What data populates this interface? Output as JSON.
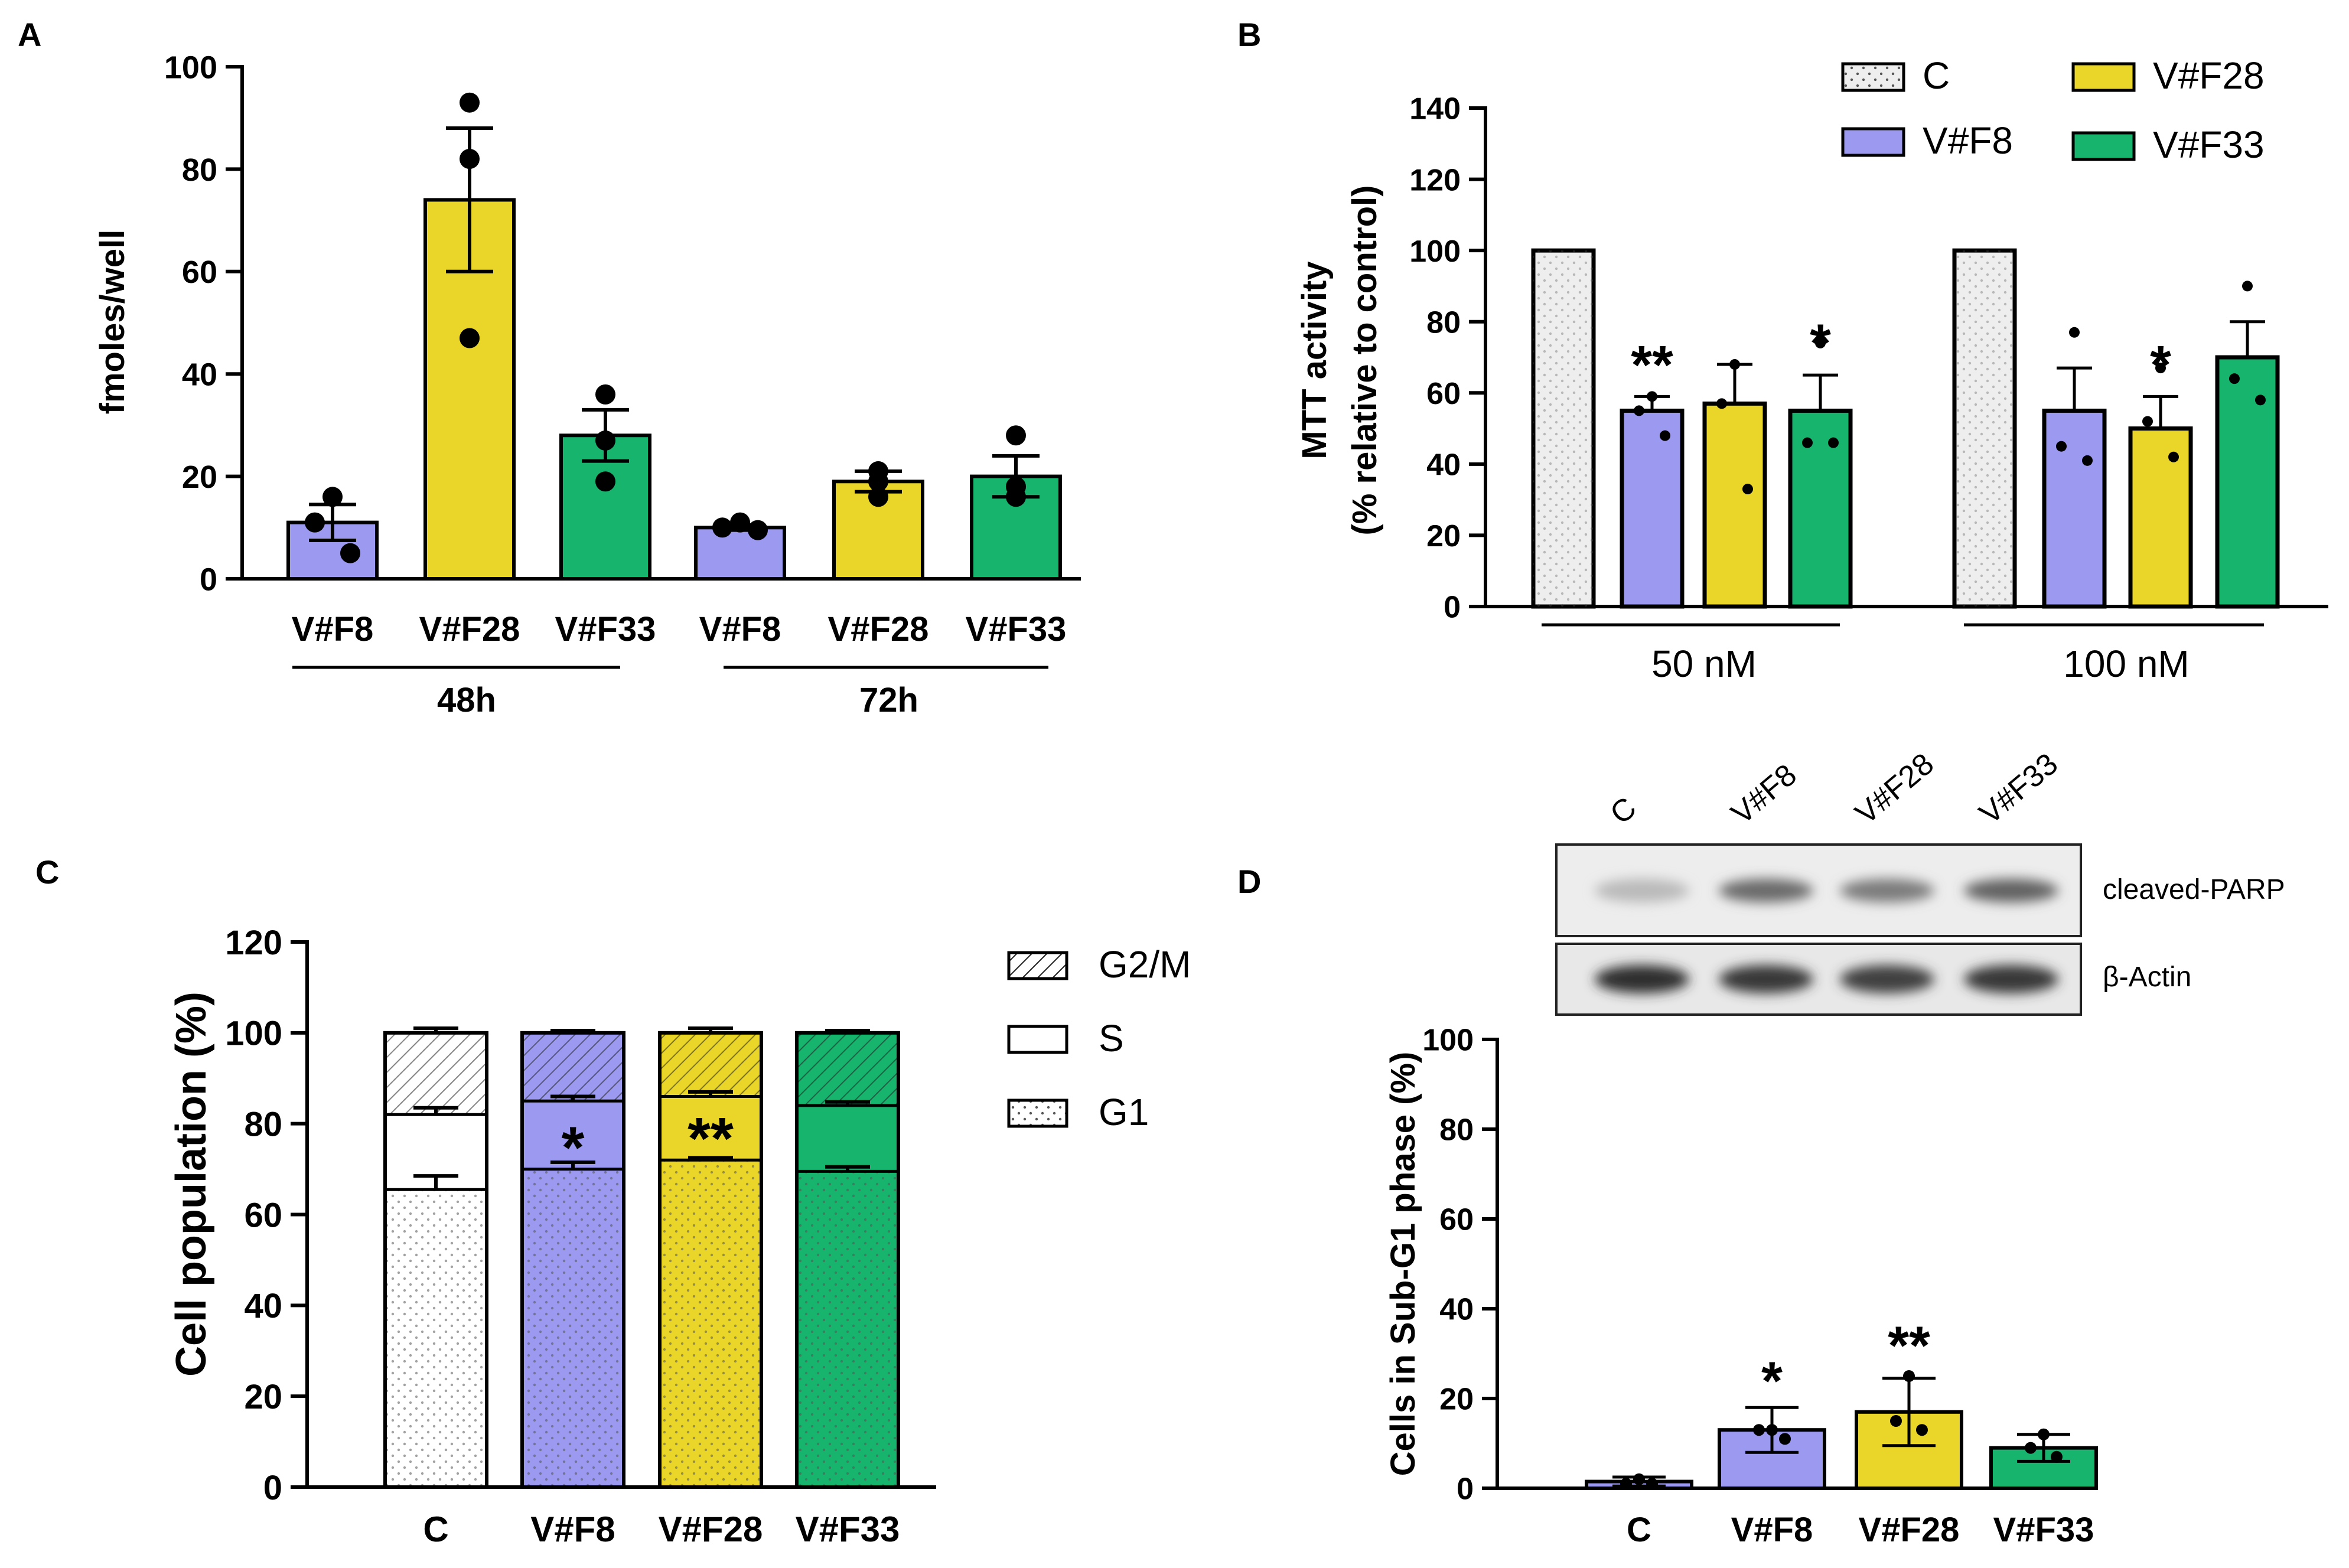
{
  "colors": {
    "control": "#eeeeee",
    "F8": "#9b99f0",
    "F28": "#ead629",
    "F33": "#17b46e",
    "axis": "#000000"
  },
  "chart_data": [
    {
      "panel": "A",
      "type": "bar",
      "ylabel": "fmoles/well",
      "ylim": [
        0,
        100
      ],
      "yticks": [
        "0",
        "20",
        "40",
        "60",
        "80",
        "100"
      ],
      "groups": [
        {
          "label": "48h",
          "bars": [
            {
              "label": "V#F8",
              "color": "F8",
              "mean": 11,
              "sem": 3.5,
              "points": [
                16,
                11,
                5
              ]
            },
            {
              "label": "V#F28",
              "color": "F28",
              "mean": 74,
              "sem": 14,
              "points": [
                93,
                82,
                47
              ]
            },
            {
              "label": "V#F33",
              "color": "F33",
              "mean": 28,
              "sem": 5,
              "points": [
                36,
                27,
                19
              ]
            }
          ]
        },
        {
          "label": "72h",
          "bars": [
            {
              "label": "V#F8",
              "color": "F8",
              "mean": 10,
              "sem": 0.5,
              "points": [
                11,
                10,
                9.5
              ]
            },
            {
              "label": "V#F28",
              "color": "F28",
              "mean": 19,
              "sem": 2,
              "points": [
                21,
                19,
                16
              ]
            },
            {
              "label": "V#F33",
              "color": "F33",
              "mean": 20,
              "sem": 4,
              "points": [
                28,
                18,
                16
              ]
            }
          ]
        }
      ]
    },
    {
      "panel": "B",
      "type": "bar",
      "ylabel_line1": "MTT activity",
      "ylabel_line2": "(% relative to control)",
      "ylim": [
        0,
        140
      ],
      "yticks": [
        "0",
        "20",
        "40",
        "60",
        "80",
        "100",
        "120",
        "140"
      ],
      "legend": [
        {
          "label": "C",
          "color": "control",
          "pattern": "dots"
        },
        {
          "label": "V#F28",
          "color": "F28"
        },
        {
          "label": "V#F8",
          "color": "F8"
        },
        {
          "label": "V#F33",
          "color": "F33"
        }
      ],
      "groups": [
        {
          "label": "50 nM",
          "bars": [
            {
              "label": "C",
              "color": "control",
              "pattern": "dots",
              "mean": 100,
              "sem": 0,
              "points": []
            },
            {
              "label": "V#F8",
              "color": "F8",
              "mean": 55,
              "sem": 4,
              "points": [
                59,
                55,
                48
              ],
              "sig": "**"
            },
            {
              "label": "V#F28",
              "color": "F28",
              "mean": 57,
              "sem": 11,
              "points": [
                68,
                57,
                33
              ]
            },
            {
              "label": "V#F33",
              "color": "F33",
              "mean": 55,
              "sem": 10,
              "points": [
                74,
                46,
                46
              ],
              "sig": "*"
            }
          ]
        },
        {
          "label": "100 nM",
          "bars": [
            {
              "label": "C",
              "color": "control",
              "pattern": "dots",
              "mean": 100,
              "sem": 0,
              "points": []
            },
            {
              "label": "V#F8",
              "color": "F8",
              "mean": 55,
              "sem": 12,
              "points": [
                77,
                45,
                41
              ]
            },
            {
              "label": "V#F28",
              "color": "F28",
              "mean": 50,
              "sem": 9,
              "points": [
                67,
                52,
                42
              ],
              "sig": "*"
            },
            {
              "label": "V#F33",
              "color": "F33",
              "mean": 70,
              "sem": 10,
              "points": [
                90,
                64,
                58
              ]
            }
          ]
        }
      ]
    },
    {
      "panel": "C",
      "type": "stacked_bar",
      "ylabel": "Cell population (%)",
      "ylim": [
        0,
        120
      ],
      "yticks": [
        "0",
        "20",
        "40",
        "60",
        "80",
        "100",
        "120"
      ],
      "legend": [
        {
          "label": "G2/M",
          "pattern": "hatch"
        },
        {
          "label": "S",
          "pattern": "none"
        },
        {
          "label": "G1",
          "pattern": "dots"
        }
      ],
      "bars": [
        {
          "label": "C",
          "color": "#ffffff",
          "G1": 65.5,
          "S": 82,
          "G2M": 100,
          "err_G1": 3,
          "err_S": 1.5,
          "err_G2M": 1
        },
        {
          "label": "V#F8",
          "color": "F8",
          "G1": 70,
          "S": 85,
          "G2M": 100,
          "err_G1": 1.5,
          "err_S": 1,
          "err_G2M": 0.5,
          "sig": "*"
        },
        {
          "label": "V#F28",
          "color": "F28",
          "G1": 72,
          "S": 86,
          "G2M": 100,
          "err_G1": 0.5,
          "err_S": 1,
          "err_G2M": 1,
          "sig": "**"
        },
        {
          "label": "V#F33",
          "color": "F33",
          "G1": 69.5,
          "S": 84,
          "G2M": 100,
          "err_G1": 1,
          "err_S": 0.8,
          "err_G2M": 0.5
        }
      ]
    },
    {
      "panel": "D",
      "type": "bar",
      "ylabel": "Cells in Sub-G1 phase (%)",
      "ylim": [
        0,
        100
      ],
      "yticks": [
        "0",
        "20",
        "40",
        "60",
        "80",
        "100"
      ],
      "bars": [
        {
          "label": "C",
          "color": "F8",
          "mean": 1.5,
          "sd": 1,
          "points": [
            2,
            1,
            1
          ]
        },
        {
          "label": "V#F8",
          "color": "F8",
          "mean": 13,
          "sd": 5,
          "points": [
            13,
            13,
            11
          ],
          "sig": "*"
        },
        {
          "label": "V#F28",
          "color": "F28",
          "mean": 17,
          "sd": 7.5,
          "points": [
            25,
            15,
            13
          ]
        },
        {
          "label": "V#F33",
          "color": "F33",
          "mean": 9,
          "sd": 3,
          "points": [
            12,
            9,
            7
          ]
        }
      ],
      "sig_labels": [
        "*",
        "**"
      ],
      "blot": {
        "lanes": [
          "C",
          "V#F8",
          "V#F28",
          "V#F33"
        ],
        "rows": [
          {
            "label": "cleaved-PARP",
            "intensity": [
              0.08,
              0.55,
              0.45,
              0.6
            ]
          },
          {
            "label": "β-Actin",
            "intensity": [
              0.9,
              0.85,
              0.8,
              0.85
            ]
          }
        ]
      }
    }
  ],
  "panel_labels": [
    "A",
    "B",
    "C",
    "D"
  ]
}
